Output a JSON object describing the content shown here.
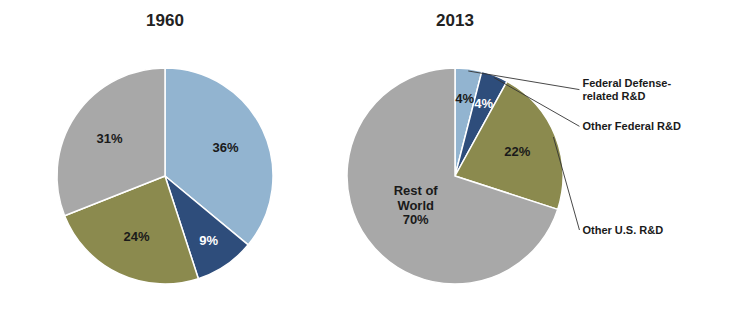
{
  "chart_data": [
    {
      "type": "pie",
      "title": "1960",
      "values": [
        36,
        9,
        24,
        31
      ],
      "value_labels": [
        "36%",
        "9%",
        "24%",
        "31%"
      ],
      "colors": [
        "#92b4d0",
        "#2e4d7b",
        "#8b8a4e",
        "#a8a8a8"
      ],
      "data_labels": true
    },
    {
      "type": "pie",
      "title": "2013",
      "categories": [
        "Federal Defense-\nrelated R&D",
        "Other Federal R&D",
        "Other U.S. R&D",
        "Rest of\nWorld"
      ],
      "values": [
        4,
        4,
        22,
        70
      ],
      "value_labels": [
        "4%",
        "4%",
        "22%",
        "70%"
      ],
      "colors": [
        "#92b4d0",
        "#2e4d7b",
        "#8b8a4e",
        "#a8a8a8"
      ],
      "data_labels": true
    }
  ]
}
